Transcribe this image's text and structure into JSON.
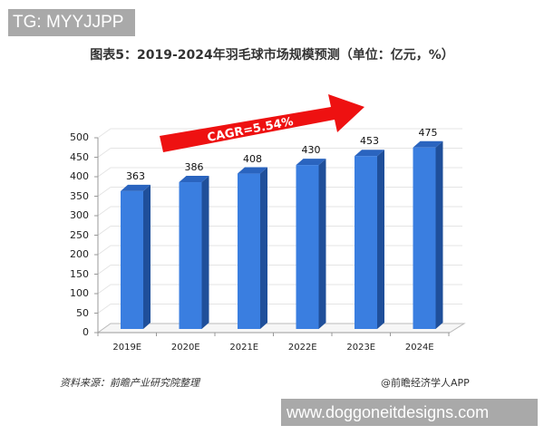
{
  "watermarks": {
    "top_left": "TG: MYYJJPP",
    "bottom_right": "www.doggoneitdesigns.com"
  },
  "chart_data": {
    "type": "bar",
    "title": "图表5：2019-2024年羽毛球市场规模预测（单位：亿元，%）",
    "categories": [
      "2019E",
      "2020E",
      "2021E",
      "2022E",
      "2023E",
      "2024E"
    ],
    "values": [
      363,
      386,
      408,
      430,
      453,
      475
    ],
    "value_labels": [
      "363",
      "386",
      "408",
      "430",
      "453",
      "475"
    ],
    "xlabel": "",
    "ylabel": "",
    "ylim": [
      0,
      500
    ],
    "yticks": [
      "0",
      "50",
      "100",
      "150",
      "200",
      "250",
      "300",
      "350",
      "400",
      "450",
      "500"
    ],
    "grid": true,
    "style": "3d-column",
    "annotation": "CAGR=5.54%",
    "colors": {
      "bar_front": "#3a7ee0",
      "bar_side": "#1f4f9a",
      "bar_top": "#2a64bf",
      "arrow": "#ee1111"
    }
  },
  "footer": {
    "source": "资料来源：前瞻产业研究院整理",
    "credit": "@前瞻经济学人APP"
  }
}
